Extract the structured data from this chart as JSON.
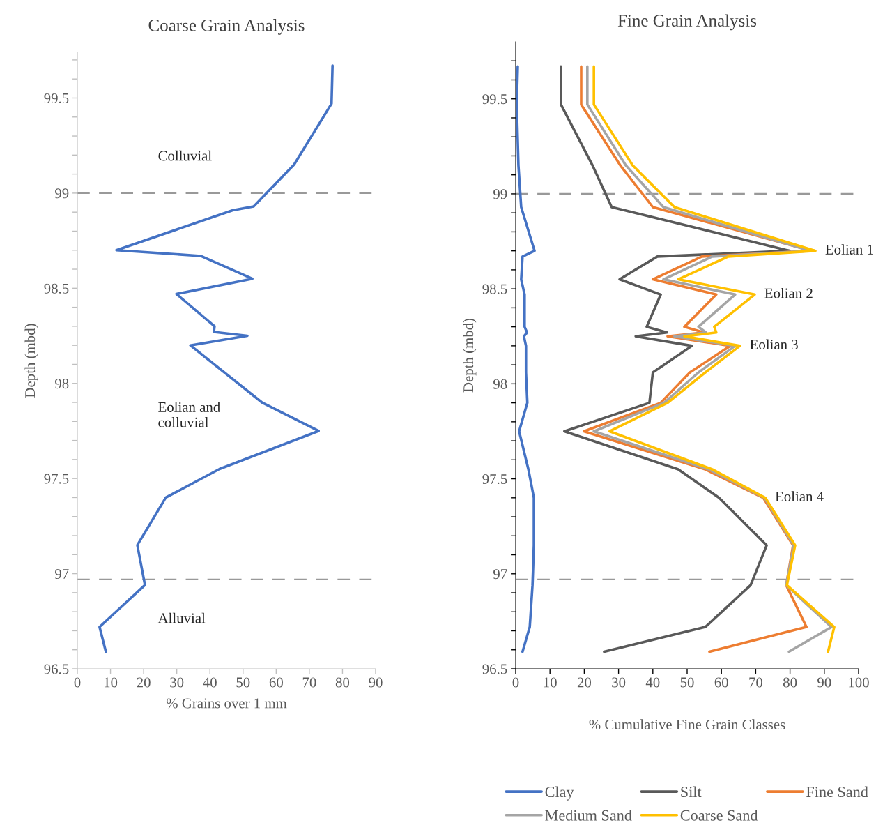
{
  "chart_data": [
    {
      "type": "line",
      "title": "Coarse Grain Analysis",
      "xlabel": "% Grains over 1 mm",
      "ylabel": "Depth (mbd)",
      "orientation": "horizontal",
      "x": [
        99.67,
        99.47,
        99.15,
        98.93,
        98.91,
        98.7,
        98.67,
        98.55,
        98.47,
        98.3,
        98.27,
        98.25,
        98.2,
        97.9,
        97.75,
        97.55,
        97.4,
        97.15,
        96.94,
        96.72,
        96.59
      ],
      "series": [
        {
          "color": "#4472c4",
          "values": [
            77.0,
            76.7,
            65.4,
            53.2,
            46.9,
            11.8,
            37.2,
            52.8,
            29.9,
            41.4,
            41.2,
            51.3,
            34.1,
            55.7,
            72.8,
            42.9,
            26.7,
            18.1,
            20.4,
            6.7,
            8.6
          ]
        }
      ],
      "xlim": [
        0,
        90
      ],
      "xticks": [
        0,
        10,
        20,
        30,
        40,
        50,
        60,
        70,
        80,
        90
      ],
      "ylim": [
        96.5,
        99.74
      ],
      "yticks": [
        96.5,
        {
          "value": 96.6,
          "label": null
        },
        {
          "value": 96.7,
          "label": null
        },
        {
          "value": 96.8,
          "label": null
        },
        {
          "value": 96.9,
          "label": null
        },
        97,
        {
          "value": 97.1,
          "label": null
        },
        {
          "value": 97.2,
          "label": null
        },
        {
          "value": 97.3,
          "label": null
        },
        {
          "value": 97.4,
          "label": null
        },
        97.5,
        {
          "value": 97.6,
          "label": null
        },
        {
          "value": 97.7,
          "label": null
        },
        {
          "value": 97.8,
          "label": null
        },
        {
          "value": 97.9,
          "label": null
        },
        98,
        {
          "value": 98.1,
          "label": null
        },
        {
          "value": 98.2,
          "label": null
        },
        {
          "value": 98.3,
          "label": null
        },
        {
          "value": 98.4,
          "label": null
        },
        98.5,
        {
          "value": 98.6,
          "label": null
        },
        {
          "value": 98.7,
          "label": null
        },
        {
          "value": 98.8,
          "label": null
        },
        {
          "value": 98.9,
          "label": null
        },
        99,
        {
          "value": 99.1,
          "label": null
        },
        {
          "value": 99.2,
          "label": null
        },
        {
          "value": 99.3,
          "label": null
        },
        {
          "value": 99.4,
          "label": null
        },
        99.5,
        {
          "value": 99.6,
          "label": null
        },
        {
          "value": 99.7,
          "label": null
        }
      ],
      "ref_lines": [
        {
          "axis": "y",
          "value": 99.0,
          "color": "#999999",
          "line_style": "dashed"
        },
        {
          "axis": "y",
          "value": 96.97,
          "color": "#999999",
          "line_style": "dashed"
        }
      ],
      "annotations": [
        "Colluvial",
        "Eolian and\ncolluvial",
        "Alluvial"
      ],
      "grid": false,
      "legend": false
    },
    {
      "type": "line",
      "title": "Fine Grain Analysis",
      "xlabel": "% Cumulative Fine Grain Classes",
      "ylabel": "Depth (mbd)",
      "orientation": "horizontal",
      "x": [
        99.67,
        99.47,
        99.15,
        98.93,
        98.7,
        98.67,
        98.55,
        98.47,
        98.3,
        98.27,
        98.25,
        98.2,
        98.06,
        97.9,
        97.75,
        97.55,
        97.4,
        97.15,
        96.94,
        96.72,
        96.59
      ],
      "series": [
        {
          "name": "Clay",
          "color": "#4472c4",
          "values": [
            0.6,
            0.3,
            0.8,
            1.6,
            5.5,
            2.0,
            1.6,
            2.6,
            2.6,
            3.3,
            2.4,
            3.0,
            3.0,
            3.4,
            1.0,
            3.7,
            5.3,
            5.3,
            4.9,
            4.1,
            2.0
          ]
        },
        {
          "name": "Silt",
          "color": "#595959",
          "values": [
            13.2,
            13.2,
            22.4,
            28.0,
            79.9,
            41.3,
            30.3,
            42.3,
            38.2,
            44.1,
            35.0,
            51.4,
            40.0,
            39.0,
            14.2,
            47.4,
            59.3,
            73.2,
            68.5,
            55.3,
            25.8
          ]
        },
        {
          "name": "Fine Sand",
          "color": "#ed7d31",
          "values": [
            19.1,
            19.1,
            30.5,
            40.0,
            86.4,
            54.3,
            40.0,
            58.5,
            49.2,
            54.9,
            44.3,
            62.6,
            50.8,
            42.3,
            19.9,
            55.3,
            72.2,
            80.9,
            78.9,
            84.8,
            56.5
          ]
        },
        {
          "name": "Medium Sand",
          "color": "#a5a5a5",
          "values": [
            20.9,
            20.9,
            32.1,
            43.1,
            86.0,
            57.3,
            43.1,
            64.0,
            53.3,
            55.5,
            46.3,
            64.0,
            53.3,
            43.3,
            22.8,
            56.3,
            72.6,
            81.1,
            78.9,
            92.1,
            79.7
          ]
        },
        {
          "name": "Coarse Sand",
          "color": "#ffc000",
          "values": [
            22.8,
            22.8,
            34.1,
            46.3,
            87.4,
            62.0,
            47.4,
            69.7,
            57.9,
            58.5,
            49.2,
            65.4,
            55.3,
            44.3,
            27.4,
            57.3,
            72.8,
            81.5,
            79.1,
            92.9,
            91.1
          ]
        }
      ],
      "xlim": [
        0,
        100
      ],
      "xticks": [
        0,
        10,
        20,
        30,
        40,
        50,
        60,
        70,
        80,
        90,
        100
      ],
      "ylim": [
        96.5,
        99.8
      ],
      "yticks": [
        96.5,
        {
          "value": 96.6,
          "label": null
        },
        {
          "value": 96.7,
          "label": null
        },
        {
          "value": 96.8,
          "label": null
        },
        {
          "value": 96.9,
          "label": null
        },
        97,
        {
          "value": 97.1,
          "label": null
        },
        {
          "value": 97.2,
          "label": null
        },
        {
          "value": 97.3,
          "label": null
        },
        {
          "value": 97.4,
          "label": null
        },
        97.5,
        {
          "value": 97.6,
          "label": null
        },
        {
          "value": 97.7,
          "label": null
        },
        {
          "value": 97.8,
          "label": null
        },
        {
          "value": 97.9,
          "label": null
        },
        98,
        {
          "value": 98.1,
          "label": null
        },
        {
          "value": 98.2,
          "label": null
        },
        {
          "value": 98.3,
          "label": null
        },
        {
          "value": 98.4,
          "label": null
        },
        98.5,
        {
          "value": 98.6,
          "label": null
        },
        {
          "value": 98.7,
          "label": null
        },
        {
          "value": 98.8,
          "label": null
        },
        {
          "value": 98.9,
          "label": null
        },
        99,
        {
          "value": 99.1,
          "label": null
        },
        {
          "value": 99.2,
          "label": null
        },
        {
          "value": 99.3,
          "label": null
        },
        {
          "value": 99.4,
          "label": null
        },
        99.5,
        {
          "value": 99.6,
          "label": null
        },
        {
          "value": 99.7,
          "label": null
        }
      ],
      "ref_lines": [
        {
          "axis": "y",
          "value": 99.0,
          "color": "#999999",
          "line_style": "dashed"
        },
        {
          "axis": "y",
          "value": 96.97,
          "color": "#999999",
          "line_style": "dashed"
        }
      ],
      "annotations": [
        {
          "text": "Eolian 1",
          "x": 87.4,
          "y": 98.7
        },
        {
          "text": "Eolian 2",
          "x": 69.7,
          "y": 98.47
        },
        {
          "text": "Eolian 3",
          "x": 65.4,
          "y": 98.2
        },
        {
          "text": "Eolian 4",
          "x": 72.8,
          "y": 97.4
        }
      ],
      "grid": false,
      "legend": "bottom"
    }
  ]
}
